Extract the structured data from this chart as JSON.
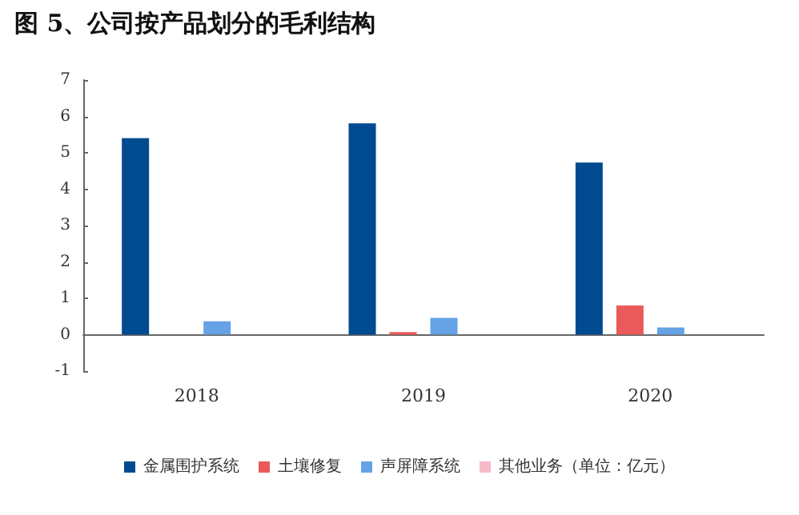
{
  "chart_data": {
    "type": "bar",
    "title": "图 5、公司按产品划分的毛利结构",
    "categories": [
      "2018",
      "2019",
      "2020"
    ],
    "series": [
      {
        "name": "金属围护系统",
        "color": "#004a8f",
        "values": [
          5.4,
          5.81,
          4.73
        ]
      },
      {
        "name": "土壤修复",
        "color": "#eb5a5a",
        "values": [
          0,
          0.07,
          0.8
        ]
      },
      {
        "name": "声屏障系统",
        "color": "#65a2e6",
        "values": [
          0.37,
          0.46,
          0.2
        ]
      },
      {
        "name": "其他业务（单位：亿元）",
        "color": "#f8b9c8",
        "values": [
          0,
          0,
          0
        ]
      }
    ],
    "ylim": [
      -1,
      7
    ],
    "yticks": [
      -1,
      0,
      1,
      2,
      3,
      4,
      5,
      6,
      7
    ],
    "legend": "bottom"
  }
}
